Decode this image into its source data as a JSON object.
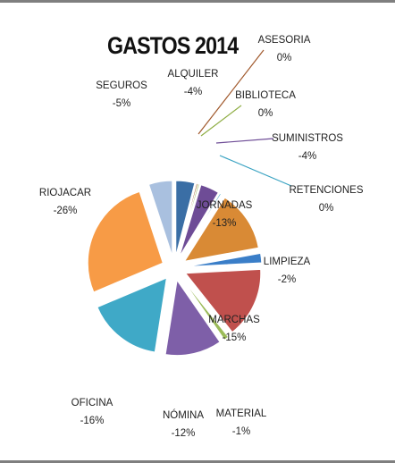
{
  "chart_data": {
    "type": "pie",
    "title": "GASTOS 2014",
    "exploded": true,
    "slices": [
      {
        "label": "ALQUILER",
        "value_label": "-4%",
        "value": 4,
        "color": "#3a6ea5"
      },
      {
        "label": "ASESORIA",
        "value_label": "0%",
        "value": 0.3,
        "color": "#a0582b"
      },
      {
        "label": "BIBLIOTECA",
        "value_label": "0%",
        "value": 0.3,
        "color": "#8fae45"
      },
      {
        "label": "SUMINISTROS",
        "value_label": "-4%",
        "value": 4,
        "color": "#6e4c96"
      },
      {
        "label": "RETENCIONES",
        "value_label": "0%",
        "value": 0.3,
        "color": "#3aa3c2"
      },
      {
        "label": "JORNADAS",
        "value_label": "-13%",
        "value": 13,
        "color": "#d98a35"
      },
      {
        "label": "LIMPIEZA",
        "value_label": "-2%",
        "value": 2,
        "color": "#3a7ec8"
      },
      {
        "label": "MARCHAS",
        "value_label": "-15%",
        "value": 15,
        "color": "#c0504d"
      },
      {
        "label": "MATERIAL",
        "value_label": "-1%",
        "value": 1,
        "color": "#9bbb59"
      },
      {
        "label": "NÓMINA",
        "value_label": "-12%",
        "value": 12,
        "color": "#7e5fa8"
      },
      {
        "label": "OFICINA",
        "value_label": "-16%",
        "value": 16,
        "color": "#3fa9c7"
      },
      {
        "label": "RIOJACAR",
        "value_label": "-26%",
        "value": 26,
        "color": "#f79b46"
      },
      {
        "label": "SEGUROS",
        "value_label": "-5%",
        "value": 5,
        "color": "#a9c0df"
      }
    ]
  }
}
